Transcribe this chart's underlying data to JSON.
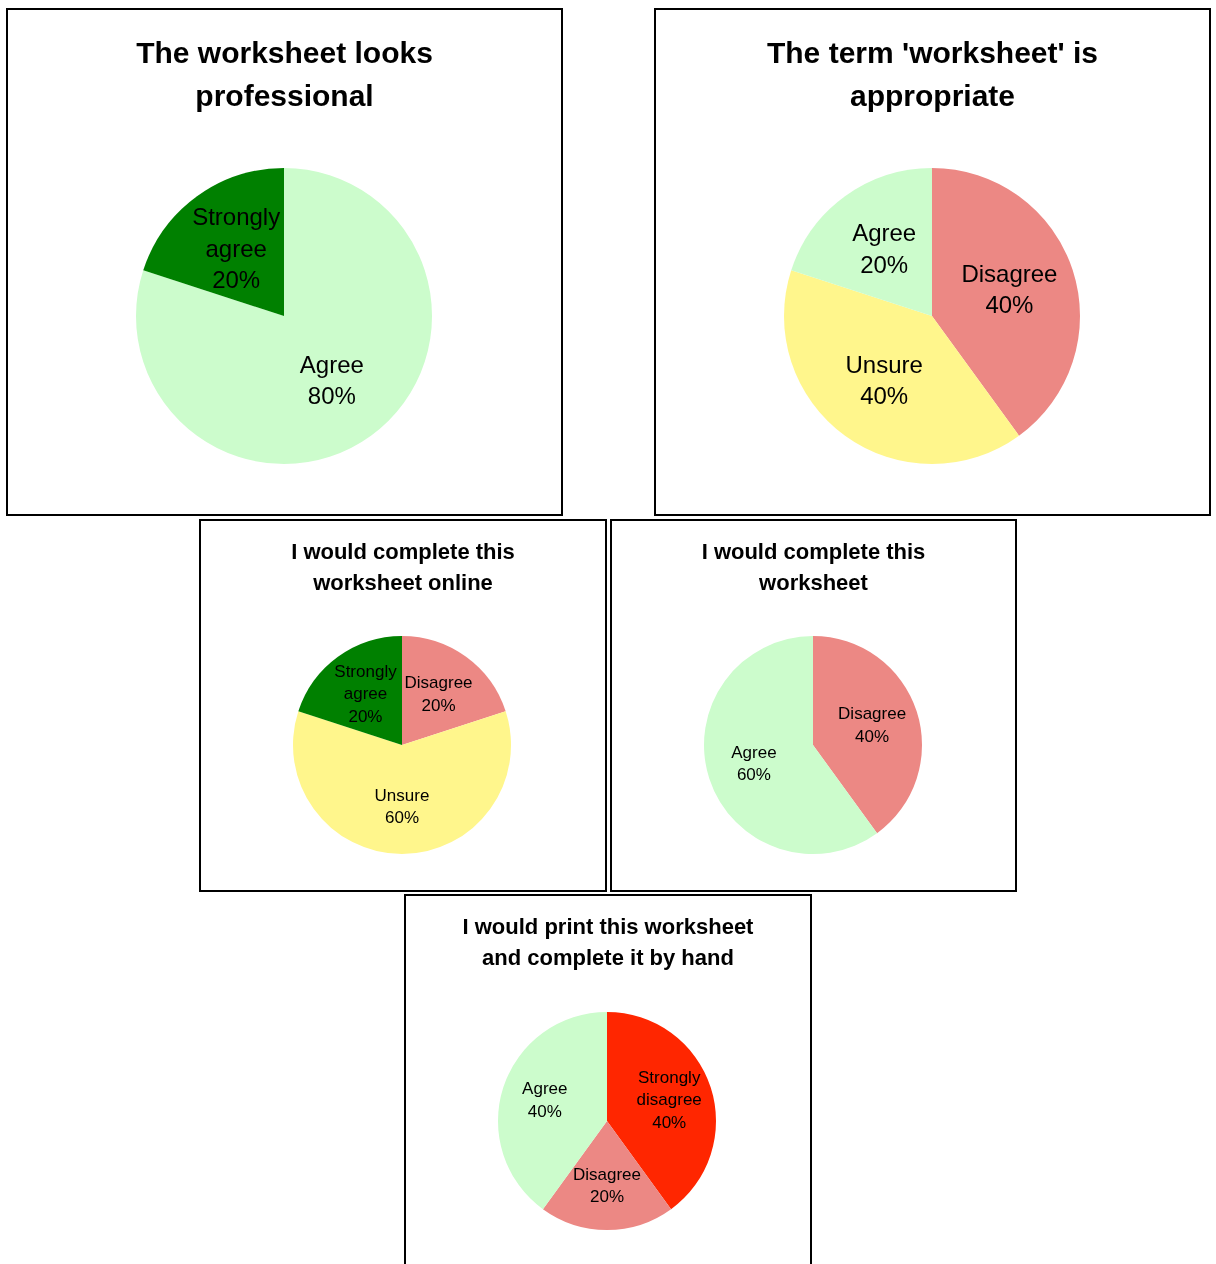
{
  "chart_data": [
    {
      "type": "pie",
      "title": "The worksheet looks professional",
      "categories": [
        "Agree",
        "Strongly agree"
      ],
      "values": [
        80,
        20
      ],
      "value_labels": [
        "80%",
        "20%"
      ],
      "colors": [
        "#ccfccc",
        "#008000"
      ]
    },
    {
      "type": "pie",
      "title": "The term 'worksheet' is appropriate",
      "categories": [
        "Disagree",
        "Unsure",
        "Agree"
      ],
      "values": [
        40,
        40,
        20
      ],
      "value_labels": [
        "40%",
        "40%",
        "20%"
      ],
      "colors": [
        "#ec8884",
        "#fff68c",
        "#ccfccc"
      ]
    },
    {
      "type": "pie",
      "title": "I would complete this worksheet online",
      "categories": [
        "Disagree",
        "Unsure",
        "Strongly agree"
      ],
      "values": [
        20,
        60,
        20
      ],
      "value_labels": [
        "20%",
        "60%",
        "20%"
      ],
      "colors": [
        "#ec8884",
        "#fff68c",
        "#008000"
      ]
    },
    {
      "type": "pie",
      "title": "I would complete this worksheet",
      "categories": [
        "Disagree",
        "Agree"
      ],
      "values": [
        40,
        60
      ],
      "value_labels": [
        "40%",
        "60%"
      ],
      "colors": [
        "#ec8884",
        "#ccfccc"
      ]
    },
    {
      "type": "pie",
      "title": "I would print this worksheet and complete it by hand",
      "categories": [
        "Strongly disagree",
        "Disagree",
        "Agree"
      ],
      "values": [
        40,
        20,
        40
      ],
      "value_labels": [
        "40%",
        "20%",
        "40%"
      ],
      "colors": [
        "#ff2600",
        "#ec8884",
        "#ccfccc"
      ]
    }
  ]
}
